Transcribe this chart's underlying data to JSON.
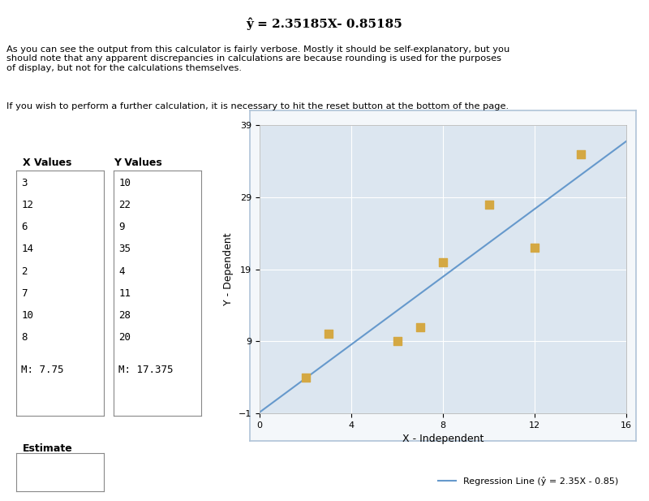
{
  "title": "ŷ = 2.35185X- 0.85185",
  "text1": "As you can see the output from this calculator is fairly verbose. Mostly it should be self-explanatory, but you\nshould note that any apparent discrepancies in calculations are because rounding is used for the purposes\nof display, but not for the calculations themselves.",
  "text2": "If you wish to perform a further calculation, it is necessary to hit the reset button at the bottom of the page.",
  "x_label": "X Values",
  "y_label": "Y Values",
  "x_values": [
    3,
    12,
    6,
    14,
    2,
    7,
    10,
    8
  ],
  "y_values": [
    10,
    22,
    9,
    35,
    4,
    11,
    28,
    20
  ],
  "x_mean": 7.75,
  "y_mean": 17.375,
  "estimate_label": "Estimate",
  "scatter_color": "#D4A843",
  "line_color": "#6699CC",
  "bg_color": "#dce6f0",
  "plot_bg": "#dce6f0",
  "xlabel": "X - Independent",
  "ylabel": "Y - Dependent",
  "legend_text": "Regression Line (ŷ = 2.35X - 0.85)",
  "slope": 2.35185,
  "intercept": -0.85185,
  "xlim": [
    0,
    16
  ],
  "ylim": [
    -1,
    39
  ],
  "xticks": [
    0,
    4,
    8,
    12,
    16
  ],
  "yticks": [
    -1,
    9,
    19,
    29,
    39
  ]
}
